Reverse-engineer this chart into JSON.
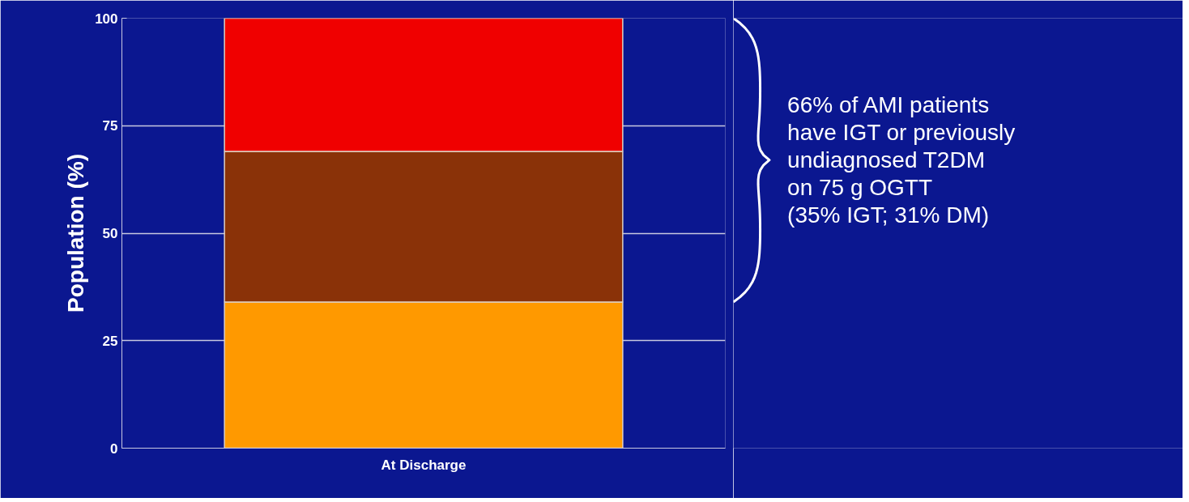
{
  "chart_data": {
    "type": "bar",
    "stacked": true,
    "categories": [
      "At Discharge"
    ],
    "series": [
      {
        "color": "#ff9900",
        "values": [
          34
        ]
      },
      {
        "color": "#8a3208",
        "values": [
          35
        ]
      },
      {
        "color": "#f00000",
        "values": [
          31
        ]
      }
    ],
    "ylabel": "Population (%)",
    "ylim": [
      0,
      100
    ],
    "yticks": [
      0,
      25,
      50,
      75,
      100
    ],
    "grid": "y",
    "annotations": [
      "66% of AMI patients\nhave IGT or previously\nundiagnosed T2DM\non 75 g OGTT\n(35% IGT; 31% DM)"
    ]
  }
}
